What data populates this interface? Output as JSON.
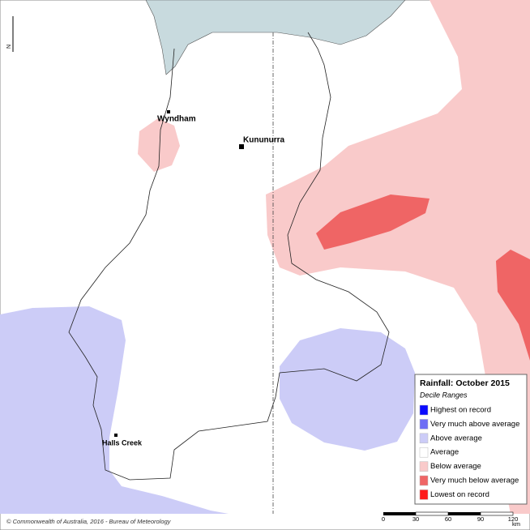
{
  "map": {
    "title": "Rainfall: October 2015",
    "subtitle": "Decile Ranges",
    "legend": [
      {
        "label": "Highest on record",
        "color": "#0a0aff"
      },
      {
        "label": "Very much above average",
        "color": "#6e6ef5"
      },
      {
        "label": "Above average",
        "color": "#ccccf7"
      },
      {
        "label": "Average",
        "color": "#ffffff"
      },
      {
        "label": "Below average",
        "color": "#f9caca"
      },
      {
        "label": "Very much below average",
        "color": "#ef6565"
      },
      {
        "label": "Lowest on record",
        "color": "#ff1c1c"
      }
    ],
    "places": [
      {
        "name": "Wyndham"
      },
      {
        "name": "Kununurra"
      },
      {
        "name": "Halls Creek"
      }
    ],
    "north": "N",
    "scale_bar": {
      "ticks": [
        0,
        30,
        60,
        90,
        120
      ],
      "unit": "km"
    },
    "credit": "© Commonwealth of Australia, 2016 - Bureau of Meteorology"
  }
}
